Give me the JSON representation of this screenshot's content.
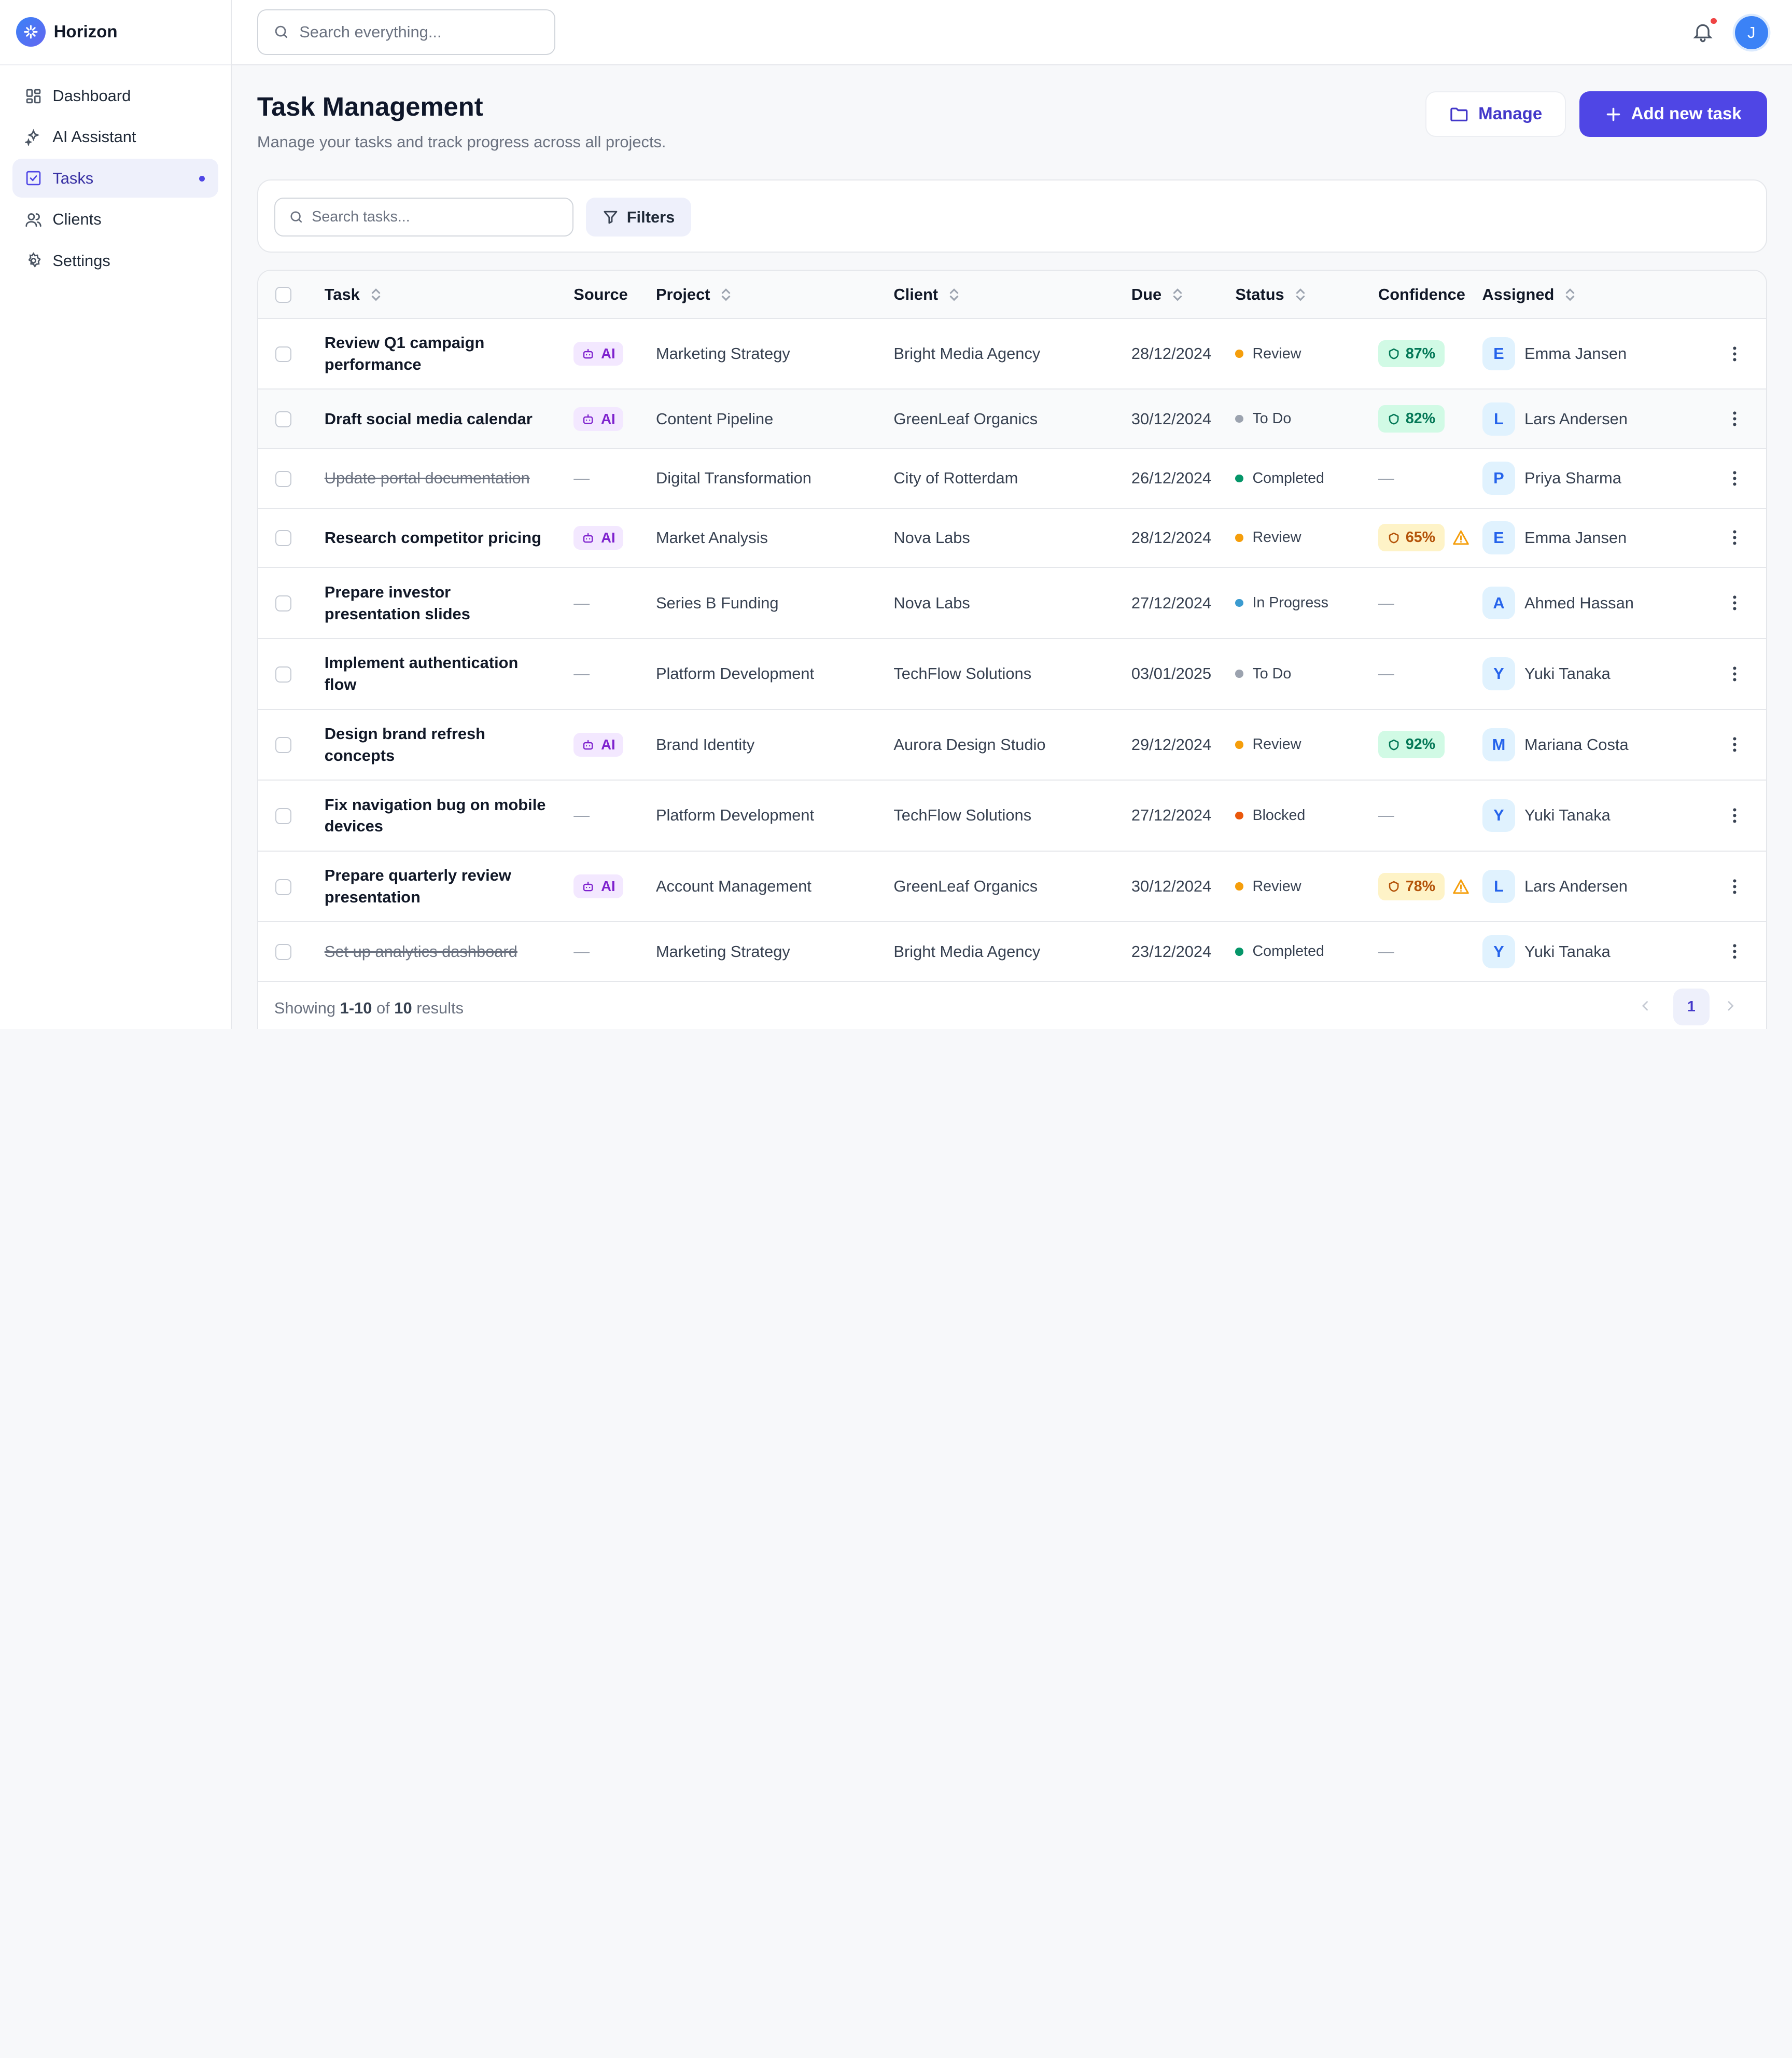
{
  "app": {
    "name": "Horizon"
  },
  "sidebar": {
    "items": [
      {
        "label": "Dashboard",
        "icon": "dashboard-icon"
      },
      {
        "label": "AI Assistant",
        "icon": "sparkles-icon"
      },
      {
        "label": "Tasks",
        "icon": "tasks-icon",
        "active": true
      },
      {
        "label": "Clients",
        "icon": "users-icon"
      },
      {
        "label": "Settings",
        "icon": "gear-icon"
      }
    ]
  },
  "topbar": {
    "search_placeholder": "Search everything...",
    "avatar_initial": "J",
    "notification_icon": "bell-icon"
  },
  "page": {
    "title": "Task Management",
    "subtitle": "Manage your tasks and track progress across all projects.",
    "manage_label": "Manage",
    "add_label": "Add new task"
  },
  "filters": {
    "search_placeholder": "Search tasks...",
    "filters_label": "Filters"
  },
  "table": {
    "columns": {
      "task": "Task",
      "source": "Source",
      "project": "Project",
      "client": "Client",
      "due": "Due",
      "status": "Status",
      "confidence": "Confidence",
      "assigned": "Assigned"
    },
    "rows": [
      {
        "task": "Review Q1 campaign performance",
        "done": false,
        "source": "AI",
        "project": "Marketing Strategy",
        "client": "Bright Media Agency",
        "due": "28/12/2024",
        "status": "Review",
        "confidence": "87%",
        "conf_level": "high",
        "warn": false,
        "initial": "E",
        "assignee": "Emma Jansen"
      },
      {
        "task": "Draft social media calendar",
        "done": false,
        "source": "AI",
        "project": "Content Pipeline",
        "client": "GreenLeaf Organics",
        "due": "30/12/2024",
        "status": "To Do",
        "confidence": "82%",
        "conf_level": "high",
        "warn": false,
        "initial": "L",
        "assignee": "Lars Andersen"
      },
      {
        "task": "Update portal documentation",
        "done": true,
        "source": "—",
        "project": "Digital Transformation",
        "client": "City of Rotterdam",
        "due": "26/12/2024",
        "status": "Completed",
        "confidence": "—",
        "conf_level": "none",
        "warn": false,
        "initial": "P",
        "assignee": "Priya Sharma"
      },
      {
        "task": "Research competitor pricing",
        "done": false,
        "source": "AI",
        "project": "Market Analysis",
        "client": "Nova Labs",
        "due": "28/12/2024",
        "status": "Review",
        "confidence": "65%",
        "conf_level": "mid",
        "warn": true,
        "initial": "E",
        "assignee": "Emma Jansen"
      },
      {
        "task": "Prepare investor presentation slides",
        "done": false,
        "source": "—",
        "project": "Series B Funding",
        "client": "Nova Labs",
        "due": "27/12/2024",
        "status": "In Progress",
        "confidence": "—",
        "conf_level": "none",
        "warn": false,
        "initial": "A",
        "assignee": "Ahmed Hassan"
      },
      {
        "task": "Implement authentication flow",
        "done": false,
        "source": "—",
        "project": "Platform Development",
        "client": "TechFlow Solutions",
        "due": "03/01/2025",
        "status": "To Do",
        "confidence": "—",
        "conf_level": "none",
        "warn": false,
        "initial": "Y",
        "assignee": "Yuki Tanaka"
      },
      {
        "task": "Design brand refresh concepts",
        "done": false,
        "source": "AI",
        "project": "Brand Identity",
        "client": "Aurora Design Studio",
        "due": "29/12/2024",
        "status": "Review",
        "confidence": "92%",
        "conf_level": "high",
        "warn": false,
        "initial": "M",
        "assignee": "Mariana Costa"
      },
      {
        "task": "Fix navigation bug on mobile devices",
        "done": false,
        "source": "—",
        "project": "Platform Development",
        "client": "TechFlow Solutions",
        "due": "27/12/2024",
        "status": "Blocked",
        "confidence": "—",
        "conf_level": "none",
        "warn": false,
        "initial": "Y",
        "assignee": "Yuki Tanaka"
      },
      {
        "task": "Prepare quarterly review presentation",
        "done": false,
        "source": "AI",
        "project": "Account Management",
        "client": "GreenLeaf Organics",
        "due": "30/12/2024",
        "status": "Review",
        "confidence": "78%",
        "conf_level": "mid",
        "warn": true,
        "initial": "L",
        "assignee": "Lars Andersen"
      },
      {
        "task": "Set up analytics dashboard",
        "done": true,
        "source": "—",
        "project": "Marketing Strategy",
        "client": "Bright Media Agency",
        "due": "23/12/2024",
        "status": "Completed",
        "confidence": "—",
        "conf_level": "none",
        "warn": false,
        "initial": "Y",
        "assignee": "Yuki Tanaka"
      }
    ]
  },
  "status_colors": {
    "Review": "#f59e0b",
    "To Do": "#9ca3af",
    "Completed": "#059669",
    "In Progress": "#3b9bd0",
    "Blocked": "#ea580c"
  },
  "pagination": {
    "showing": "Showing",
    "range": "1-10",
    "of": "of",
    "total": "10",
    "results": "results",
    "current_page": "1"
  }
}
